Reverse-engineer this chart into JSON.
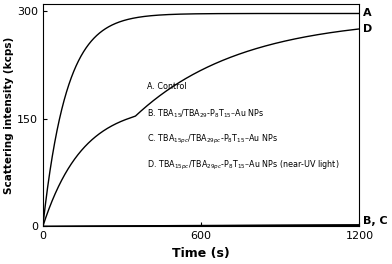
{
  "title": "",
  "xlabel": "Time (s)",
  "ylabel": "Scattering intensity (kcps)",
  "xlim": [
    0,
    1200
  ],
  "ylim": [
    0,
    310
  ],
  "yticks": [
    0,
    150,
    300
  ],
  "xticks": [
    0,
    600,
    1200
  ],
  "legend_entries": [
    "A. Control",
    "B. TBA$_{15}$/TBA$_{29}$-P$_8$T$_{15}$–Au NPs",
    "C. TBA$_{15pc}$/TBA$_{29pc}$-P$_8$T$_{15}$–Au NPs",
    "D. TBA$_{15pc}$/TBA$_{29pc}$-P$_8$T$_{15}$–Au NPs (near-UV light)"
  ],
  "background_color": "#ffffff",
  "line_color": "#000000",
  "curve_A_params": {
    "scale": 297,
    "tau": 90
  },
  "curve_D_params": {
    "plateau1": 170,
    "tau1": 150,
    "plateau2": 292,
    "tau2": 400,
    "split": 350
  },
  "curve_BC_params": {
    "scale": 5,
    "tau": 2000
  }
}
